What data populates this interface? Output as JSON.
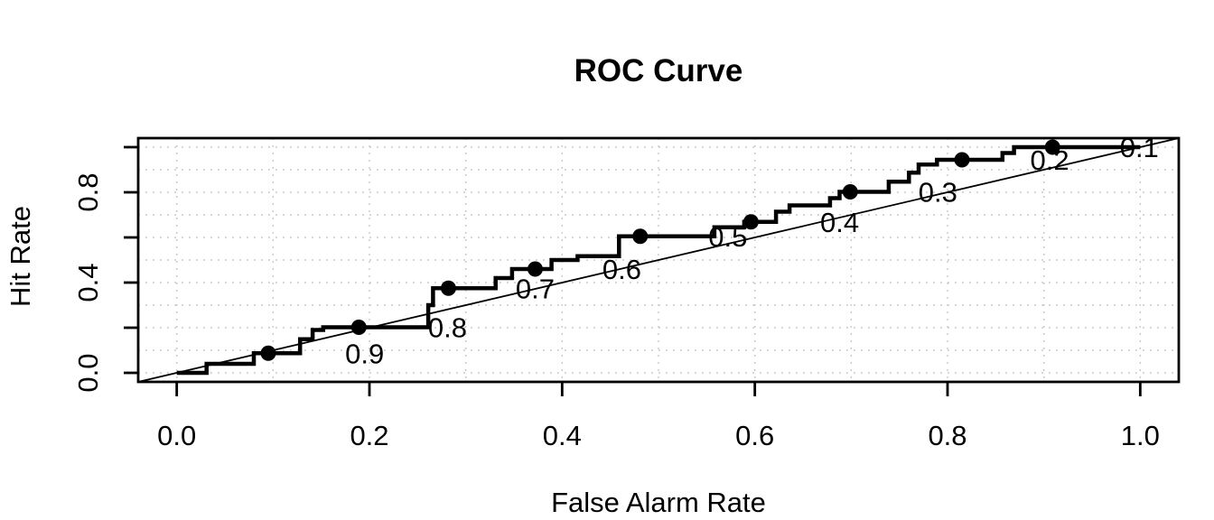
{
  "chart_data": {
    "type": "line",
    "subtype": "roc-step-curve",
    "title": "ROC Curve",
    "xlabel": "False Alarm Rate",
    "ylabel": "Hit Rate",
    "xlim": [
      -0.04,
      1.04
    ],
    "ylim": [
      -0.04,
      1.04
    ],
    "x_ticks": [
      {
        "v": 0.0,
        "label": "0.0"
      },
      {
        "v": 0.2,
        "label": "0.2"
      },
      {
        "v": 0.4,
        "label": "0.4"
      },
      {
        "v": 0.6,
        "label": "0.6"
      },
      {
        "v": 0.8,
        "label": "0.8"
      },
      {
        "v": 1.0,
        "label": "1.0"
      }
    ],
    "y_ticks": [
      {
        "v": 0.0,
        "label": "0.0"
      },
      {
        "v": 0.2,
        "label": ""
      },
      {
        "v": 0.4,
        "label": "0.4"
      },
      {
        "v": 0.6,
        "label": ""
      },
      {
        "v": 0.8,
        "label": "0.8"
      },
      {
        "v": 1.0,
        "label": ""
      }
    ],
    "grid": {
      "show": true,
      "step": 0.1,
      "style": "dotted",
      "color": "#c9c9c9"
    },
    "diagonal_reference": {
      "slope": 1,
      "intercept": 0
    },
    "series": [
      {
        "name": "ROC step curve",
        "points": [
          [
            0.0,
            0.0
          ],
          [
            0.031,
            0.0
          ],
          [
            0.031,
            0.04
          ],
          [
            0.08,
            0.04
          ],
          [
            0.08,
            0.087
          ],
          [
            0.128,
            0.087
          ],
          [
            0.128,
            0.149
          ],
          [
            0.141,
            0.149
          ],
          [
            0.141,
            0.19
          ],
          [
            0.152,
            0.19
          ],
          [
            0.152,
            0.202
          ],
          [
            0.261,
            0.202
          ],
          [
            0.261,
            0.3
          ],
          [
            0.266,
            0.3
          ],
          [
            0.266,
            0.375
          ],
          [
            0.331,
            0.375
          ],
          [
            0.331,
            0.42
          ],
          [
            0.348,
            0.42
          ],
          [
            0.348,
            0.46
          ],
          [
            0.389,
            0.46
          ],
          [
            0.389,
            0.5
          ],
          [
            0.416,
            0.5
          ],
          [
            0.416,
            0.517
          ],
          [
            0.459,
            0.517
          ],
          [
            0.459,
            0.605
          ],
          [
            0.558,
            0.605
          ],
          [
            0.558,
            0.645
          ],
          [
            0.589,
            0.645
          ],
          [
            0.589,
            0.669
          ],
          [
            0.622,
            0.669
          ],
          [
            0.622,
            0.714
          ],
          [
            0.636,
            0.714
          ],
          [
            0.636,
            0.742
          ],
          [
            0.678,
            0.742
          ],
          [
            0.678,
            0.774
          ],
          [
            0.688,
            0.774
          ],
          [
            0.688,
            0.802
          ],
          [
            0.739,
            0.802
          ],
          [
            0.739,
            0.847
          ],
          [
            0.76,
            0.847
          ],
          [
            0.76,
            0.887
          ],
          [
            0.77,
            0.887
          ],
          [
            0.77,
            0.923
          ],
          [
            0.789,
            0.923
          ],
          [
            0.789,
            0.944
          ],
          [
            0.857,
            0.944
          ],
          [
            0.857,
            0.974
          ],
          [
            0.869,
            0.974
          ],
          [
            0.869,
            1.0
          ],
          [
            1.0,
            1.0
          ]
        ]
      }
    ],
    "cutoff_points": [
      {
        "cutoff": "0.9",
        "x": 0.095,
        "y": 0.087,
        "label_x": 0.195
      },
      {
        "cutoff": "0.8",
        "x": 0.189,
        "y": 0.202,
        "label_x": 0.281
      },
      {
        "cutoff": "0.7",
        "x": 0.282,
        "y": 0.375,
        "label_x": 0.372
      },
      {
        "cutoff": "0.6",
        "x": 0.372,
        "y": 0.46,
        "label_x": 0.462
      },
      {
        "cutoff": "0.5",
        "x": 0.481,
        "y": 0.605,
        "label_x": 0.572
      },
      {
        "cutoff": "0.4",
        "x": 0.596,
        "y": 0.669,
        "label_x": 0.688
      },
      {
        "cutoff": "0.3",
        "x": 0.699,
        "y": 0.802,
        "label_x": 0.79
      },
      {
        "cutoff": "0.2",
        "x": 0.815,
        "y": 0.944,
        "label_x": 0.906
      },
      {
        "cutoff": "0.1",
        "x": 0.909,
        "y": 1.0,
        "label_x": 0.999
      }
    ],
    "colors": {
      "curve": "#000000",
      "diagonal": "#000000",
      "grid": "#c9c9c9",
      "text": "#000000",
      "box": "#000000",
      "background": "#ffffff"
    }
  }
}
